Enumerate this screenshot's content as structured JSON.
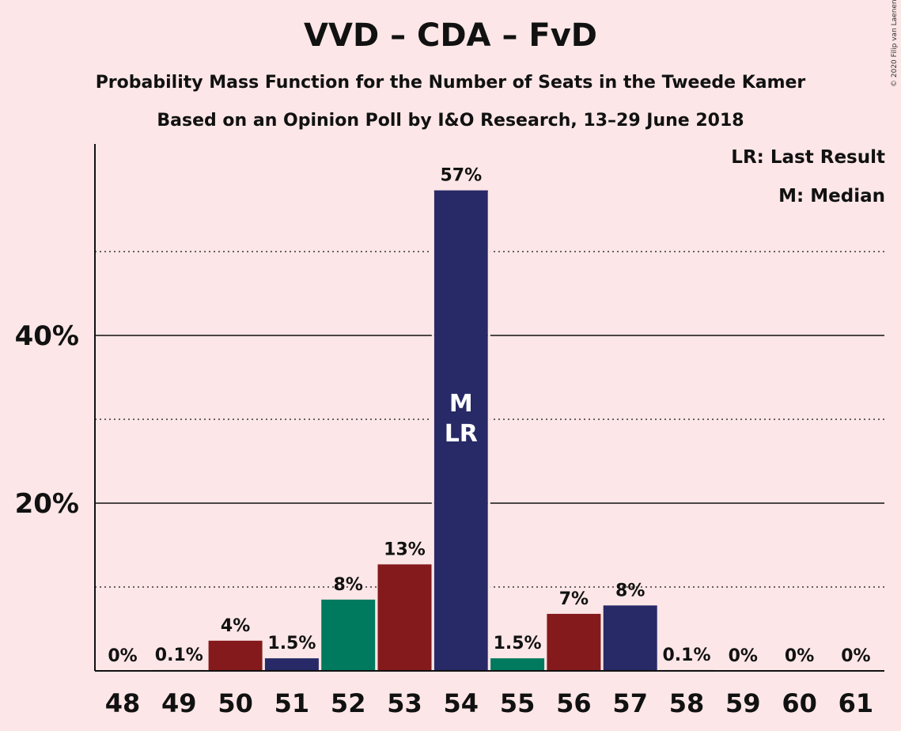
{
  "header": {
    "title": "VVD – CDA – FvD",
    "subtitle_1": "Probability Mass Function for the Number of Seats in the Tweede Kamer",
    "subtitle_2": "Based on an Opinion Poll by I&O Research, 13–29 June 2018",
    "copyright": "© 2020 Filip van Laenen"
  },
  "legend": {
    "last_result": "LR: Last Result",
    "median": "M: Median"
  },
  "colors": {
    "background": "#fce6e7",
    "vvd_navy": "#272a66",
    "cda_green": "#007a5e",
    "fvd_red": "#841a1b"
  },
  "chart_data": {
    "type": "bar",
    "title": "VVD – CDA – FvD",
    "categories": [
      "48",
      "49",
      "50",
      "51",
      "52",
      "53",
      "54",
      "55",
      "56",
      "57",
      "58",
      "59",
      "60",
      "61"
    ],
    "values": [
      0,
      0.1,
      3.6,
      1.5,
      8.5,
      12.7,
      57.3,
      1.5,
      6.8,
      7.8,
      0.1,
      0,
      0,
      0
    ],
    "labels": [
      "0%",
      "0.1%",
      "4%",
      "1.5%",
      "8%",
      "13%",
      "57%",
      "1.5%",
      "7%",
      "8%",
      "0.1%",
      "0%",
      "0%",
      "0%"
    ],
    "bar_colors": [
      "#272a66",
      "#272a66",
      "#841a1b",
      "#272a66",
      "#007a5e",
      "#841a1b",
      "#272a66",
      "#007a5e",
      "#841a1b",
      "#272a66",
      "#272a66",
      "#272a66",
      "#272a66",
      "#272a66"
    ],
    "ylim": [
      0,
      62
    ],
    "yticks": [
      20,
      40
    ],
    "ytick_labels": [
      "20%",
      "40%"
    ],
    "minor_gridlines": [
      10,
      30,
      50
    ],
    "median_marker": {
      "category": "54",
      "text": "M"
    },
    "last_result_marker": {
      "category": "54",
      "text": "LR"
    },
    "legend_position": "top-right"
  }
}
